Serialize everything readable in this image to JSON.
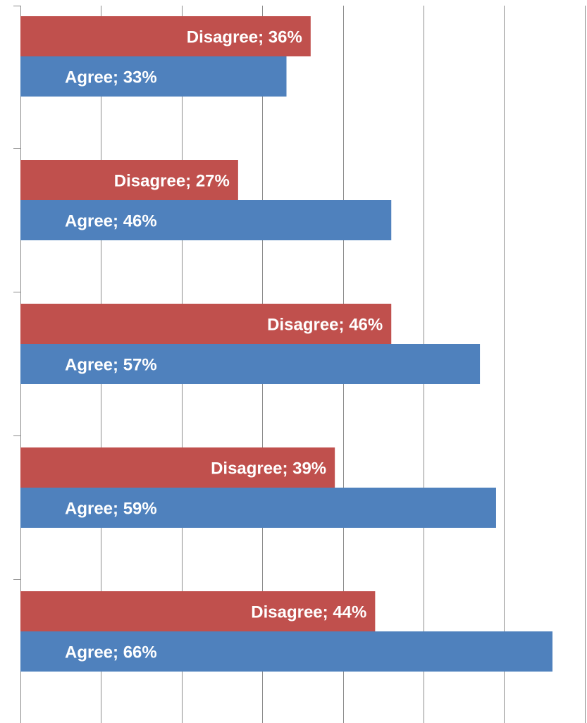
{
  "chart_data": {
    "type": "bar",
    "orientation": "horizontal",
    "xlim": [
      0,
      0.7
    ],
    "grid": true,
    "legend": "none",
    "categories": [
      "",
      "",
      "",
      "",
      ""
    ],
    "series": [
      {
        "name": "Agree",
        "color": "#4f81bd",
        "values": [
          0.66,
          0.59,
          0.57,
          0.46,
          0.33
        ],
        "labels": [
          "Agree; 66%",
          "Agree; 59%",
          "Agree; 57%",
          "Agree; 46%",
          "Agree; 33%"
        ]
      },
      {
        "name": "Disagree",
        "color": "#c0504d",
        "values": [
          0.44,
          0.39,
          0.46,
          0.27,
          0.36
        ],
        "labels": [
          "Disagree; 44%",
          "Disagree; 39%",
          "Disagree; 46%",
          "Disagree; 27%",
          "Disagree; 36%"
        ]
      }
    ]
  }
}
